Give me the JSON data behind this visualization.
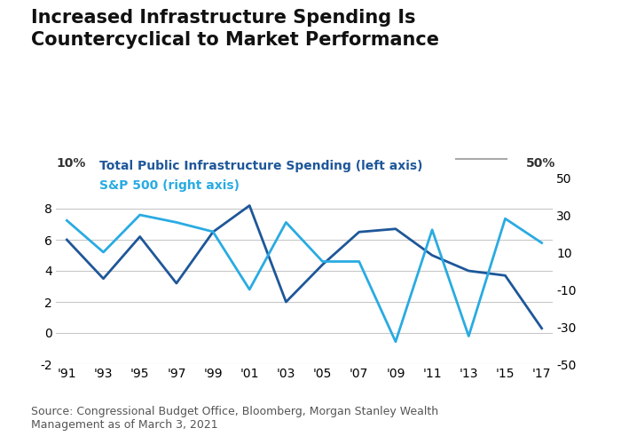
{
  "title": "Increased Infrastructure Spending Is\nCountercyclical to Market Performance",
  "x_labels": [
    "'91",
    "'93",
    "'95",
    "'97",
    "'99",
    "'01",
    "'03",
    "'05",
    "'07",
    "'09",
    "'11",
    "'13",
    "'15",
    "'17"
  ],
  "infra_spending": [
    6.0,
    3.5,
    6.2,
    3.2,
    6.5,
    8.2,
    2.0,
    4.4,
    6.5,
    6.7,
    5.0,
    4.0,
    3.7,
    0.3
  ],
  "sp500": [
    27,
    10,
    30,
    26,
    21,
    -10,
    26,
    5,
    5,
    -38,
    22,
    -35,
    28,
    15
  ],
  "infra_color": "#1a5276",
  "sp500_color": "#2e86c1",
  "sp500_light_color": "#5dade2",
  "left_ylim": [
    -2,
    10
  ],
  "right_ylim": [
    -50,
    50
  ],
  "left_yticks": [
    -2,
    0,
    2,
    4,
    6,
    8
  ],
  "right_yticks": [
    -50,
    -30,
    -10,
    10,
    30,
    50
  ],
  "legend_infra": "Total Public Infrastructure Spending (left axis)",
  "legend_sp500": "S&P 500 (right axis)",
  "source_text": "Source: Congressional Budget Office, Bloomberg, Morgan Stanley Wealth\nManagement as of March 3, 2021",
  "bg_color": "#ffffff",
  "grid_color": "#c8c8c8",
  "title_fontsize": 15,
  "tick_fontsize": 10,
  "legend_fontsize": 10,
  "source_fontsize": 9
}
